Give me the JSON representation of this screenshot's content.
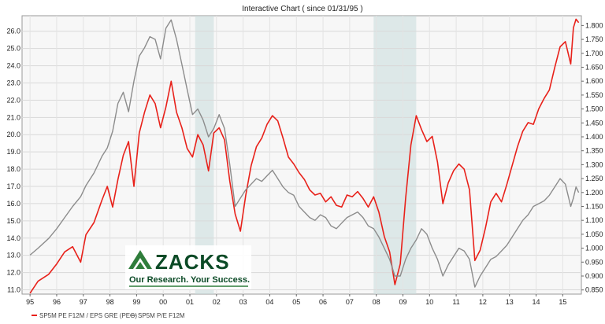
{
  "chart_data": {
    "type": "line",
    "title": "Interactive Chart ( since 01/31/95 )",
    "x_tick_labels": [
      "95",
      "96",
      "97",
      "98",
      "99",
      "00",
      "01",
      "02",
      "03",
      "04",
      "05",
      "06",
      "07",
      "08",
      "09",
      "10",
      "11",
      "12",
      "13",
      "14",
      "15"
    ],
    "x_tick_years": [
      1995,
      1996,
      1997,
      1998,
      1999,
      2000,
      2001,
      2002,
      2003,
      2004,
      2005,
      2006,
      2007,
      2008,
      2009,
      2010,
      2011,
      2012,
      2013,
      2014,
      2015
    ],
    "xlim": [
      1994.7,
      2015.7
    ],
    "y_left": {
      "lim": [
        10.75,
        26.9
      ],
      "ticks": [
        "11.0",
        "12.0",
        "13.0",
        "14.0",
        "15.0",
        "16.0",
        "17.0",
        "18.0",
        "19.0",
        "20.0",
        "21.0",
        "22.0",
        "23.0",
        "24.0",
        "25.0",
        "26.0"
      ]
    },
    "y_right": {
      "lim": [
        0.835,
        1.835
      ],
      "ticks": [
        "0.850",
        "0.900",
        "0.950",
        "1.000",
        "1.050",
        "1.100",
        "1.150",
        "1.200",
        "1.250",
        "1.300",
        "1.350",
        "1.400",
        "1.450",
        "1.500",
        "1.550",
        "1.600",
        "1.650",
        "1.700",
        "1.750",
        "1.800"
      ]
    },
    "grid": true,
    "legend_position": "bottom-left",
    "recession_bands": [
      [
        2001.2,
        2001.9
      ],
      [
        2007.9,
        2009.5
      ]
    ],
    "series": [
      {
        "name": "SP5M PE F12M / EPS GRE (PEG)",
        "axis": "left",
        "color": "#e8211a",
        "points": [
          [
            1995.0,
            10.8
          ],
          [
            1995.3,
            11.5
          ],
          [
            1995.7,
            11.9
          ],
          [
            1996.0,
            12.5
          ],
          [
            1996.3,
            13.2
          ],
          [
            1996.6,
            13.5
          ],
          [
            1996.9,
            12.6
          ],
          [
            1997.1,
            14.2
          ],
          [
            1997.4,
            14.9
          ],
          [
            1997.7,
            16.2
          ],
          [
            1997.9,
            17.0
          ],
          [
            1998.1,
            15.8
          ],
          [
            1998.3,
            17.4
          ],
          [
            1998.5,
            18.8
          ],
          [
            1998.7,
            19.6
          ],
          [
            1998.9,
            17.0
          ],
          [
            1999.1,
            20.1
          ],
          [
            1999.3,
            21.3
          ],
          [
            1999.5,
            22.3
          ],
          [
            1999.7,
            21.8
          ],
          [
            1999.9,
            20.4
          ],
          [
            2000.1,
            21.6
          ],
          [
            2000.3,
            23.1
          ],
          [
            2000.5,
            21.3
          ],
          [
            2000.7,
            20.4
          ],
          [
            2000.9,
            19.2
          ],
          [
            2001.1,
            18.7
          ],
          [
            2001.3,
            20.0
          ],
          [
            2001.5,
            19.4
          ],
          [
            2001.7,
            17.9
          ],
          [
            2001.9,
            20.1
          ],
          [
            2002.1,
            20.4
          ],
          [
            2002.3,
            19.7
          ],
          [
            2002.5,
            17.3
          ],
          [
            2002.7,
            15.4
          ],
          [
            2002.9,
            14.4
          ],
          [
            2003.1,
            16.5
          ],
          [
            2003.3,
            18.2
          ],
          [
            2003.5,
            19.3
          ],
          [
            2003.7,
            19.8
          ],
          [
            2003.9,
            20.6
          ],
          [
            2004.1,
            21.1
          ],
          [
            2004.3,
            20.8
          ],
          [
            2004.5,
            19.8
          ],
          [
            2004.7,
            18.7
          ],
          [
            2004.9,
            18.3
          ],
          [
            2005.1,
            17.8
          ],
          [
            2005.3,
            17.4
          ],
          [
            2005.5,
            16.8
          ],
          [
            2005.7,
            16.5
          ],
          [
            2005.9,
            16.6
          ],
          [
            2006.1,
            16.1
          ],
          [
            2006.3,
            16.4
          ],
          [
            2006.5,
            15.9
          ],
          [
            2006.7,
            15.8
          ],
          [
            2006.9,
            16.5
          ],
          [
            2007.1,
            16.4
          ],
          [
            2007.3,
            16.7
          ],
          [
            2007.5,
            16.3
          ],
          [
            2007.7,
            15.8
          ],
          [
            2007.9,
            16.4
          ],
          [
            2008.1,
            15.5
          ],
          [
            2008.3,
            14.1
          ],
          [
            2008.5,
            13.2
          ],
          [
            2008.7,
            11.3
          ],
          [
            2008.9,
            12.5
          ],
          [
            2009.1,
            16.3
          ],
          [
            2009.3,
            19.4
          ],
          [
            2009.5,
            21.1
          ],
          [
            2009.7,
            20.3
          ],
          [
            2009.9,
            19.6
          ],
          [
            2010.1,
            19.9
          ],
          [
            2010.3,
            18.4
          ],
          [
            2010.5,
            16.0
          ],
          [
            2010.7,
            17.2
          ],
          [
            2010.9,
            17.9
          ],
          [
            2011.1,
            18.3
          ],
          [
            2011.3,
            18.0
          ],
          [
            2011.5,
            16.8
          ],
          [
            2011.7,
            12.7
          ],
          [
            2011.9,
            13.3
          ],
          [
            2012.1,
            14.6
          ],
          [
            2012.3,
            16.1
          ],
          [
            2012.5,
            16.6
          ],
          [
            2012.7,
            16.1
          ],
          [
            2012.9,
            17.1
          ],
          [
            2013.1,
            18.2
          ],
          [
            2013.3,
            19.3
          ],
          [
            2013.5,
            20.2
          ],
          [
            2013.7,
            20.7
          ],
          [
            2013.9,
            20.6
          ],
          [
            2014.1,
            21.5
          ],
          [
            2014.3,
            22.1
          ],
          [
            2014.5,
            22.6
          ],
          [
            2014.7,
            23.9
          ],
          [
            2014.9,
            25.1
          ],
          [
            2015.1,
            25.4
          ],
          [
            2015.3,
            24.1
          ],
          [
            2015.4,
            26.2
          ],
          [
            2015.5,
            26.7
          ],
          [
            2015.6,
            26.5
          ]
        ]
      },
      {
        "name": "SP5M P/E F12M",
        "axis": "right",
        "color": "#8c8c8c",
        "points": [
          [
            1995.0,
            0.975
          ],
          [
            1995.3,
            1.0
          ],
          [
            1995.7,
            1.035
          ],
          [
            1996.0,
            1.07
          ],
          [
            1996.3,
            1.11
          ],
          [
            1996.6,
            1.15
          ],
          [
            1996.9,
            1.185
          ],
          [
            1997.1,
            1.225
          ],
          [
            1997.4,
            1.27
          ],
          [
            1997.7,
            1.33
          ],
          [
            1997.9,
            1.36
          ],
          [
            1998.1,
            1.42
          ],
          [
            1998.3,
            1.52
          ],
          [
            1998.5,
            1.56
          ],
          [
            1998.7,
            1.49
          ],
          [
            1998.9,
            1.6
          ],
          [
            1999.1,
            1.69
          ],
          [
            1999.3,
            1.72
          ],
          [
            1999.5,
            1.76
          ],
          [
            1999.7,
            1.75
          ],
          [
            1999.9,
            1.68
          ],
          [
            2000.1,
            1.79
          ],
          [
            2000.3,
            1.82
          ],
          [
            2000.5,
            1.75
          ],
          [
            2000.7,
            1.66
          ],
          [
            2000.9,
            1.57
          ],
          [
            2001.1,
            1.48
          ],
          [
            2001.3,
            1.5
          ],
          [
            2001.5,
            1.46
          ],
          [
            2001.7,
            1.4
          ],
          [
            2001.9,
            1.43
          ],
          [
            2002.1,
            1.48
          ],
          [
            2002.3,
            1.43
          ],
          [
            2002.5,
            1.3
          ],
          [
            2002.7,
            1.15
          ],
          [
            2002.9,
            1.18
          ],
          [
            2003.1,
            1.21
          ],
          [
            2003.3,
            1.23
          ],
          [
            2003.5,
            1.25
          ],
          [
            2003.7,
            1.24
          ],
          [
            2003.9,
            1.26
          ],
          [
            2004.1,
            1.28
          ],
          [
            2004.3,
            1.25
          ],
          [
            2004.5,
            1.22
          ],
          [
            2004.7,
            1.2
          ],
          [
            2004.9,
            1.19
          ],
          [
            2005.1,
            1.15
          ],
          [
            2005.3,
            1.13
          ],
          [
            2005.5,
            1.11
          ],
          [
            2005.7,
            1.1
          ],
          [
            2005.9,
            1.12
          ],
          [
            2006.1,
            1.11
          ],
          [
            2006.3,
            1.08
          ],
          [
            2006.5,
            1.07
          ],
          [
            2006.7,
            1.09
          ],
          [
            2006.9,
            1.11
          ],
          [
            2007.1,
            1.12
          ],
          [
            2007.3,
            1.13
          ],
          [
            2007.5,
            1.11
          ],
          [
            2007.7,
            1.08
          ],
          [
            2007.9,
            1.07
          ],
          [
            2008.1,
            1.04
          ],
          [
            2008.3,
            1.0
          ],
          [
            2008.5,
            0.96
          ],
          [
            2008.7,
            0.9
          ],
          [
            2008.9,
            0.9
          ],
          [
            2009.1,
            0.96
          ],
          [
            2009.3,
            1.0
          ],
          [
            2009.5,
            1.03
          ],
          [
            2009.7,
            1.07
          ],
          [
            2009.9,
            1.05
          ],
          [
            2010.1,
            1.0
          ],
          [
            2010.3,
            0.96
          ],
          [
            2010.5,
            0.9
          ],
          [
            2010.7,
            0.94
          ],
          [
            2010.9,
            0.97
          ],
          [
            2011.1,
            1.0
          ],
          [
            2011.3,
            0.99
          ],
          [
            2011.5,
            0.96
          ],
          [
            2011.7,
            0.86
          ],
          [
            2011.9,
            0.9
          ],
          [
            2012.1,
            0.93
          ],
          [
            2012.3,
            0.96
          ],
          [
            2012.5,
            0.97
          ],
          [
            2012.7,
            0.99
          ],
          [
            2012.9,
            1.01
          ],
          [
            2013.1,
            1.04
          ],
          [
            2013.3,
            1.07
          ],
          [
            2013.5,
            1.1
          ],
          [
            2013.7,
            1.12
          ],
          [
            2013.9,
            1.15
          ],
          [
            2014.1,
            1.16
          ],
          [
            2014.3,
            1.17
          ],
          [
            2014.5,
            1.19
          ],
          [
            2014.7,
            1.22
          ],
          [
            2014.9,
            1.25
          ],
          [
            2015.1,
            1.23
          ],
          [
            2015.3,
            1.15
          ],
          [
            2015.4,
            1.18
          ],
          [
            2015.5,
            1.22
          ],
          [
            2015.6,
            1.2
          ]
        ]
      }
    ]
  },
  "logo": {
    "wordmark": "ZACKS",
    "tagline": "Our Research. Your Success.",
    "color": "#2f7d3b",
    "text_color": "#0b4a26"
  }
}
